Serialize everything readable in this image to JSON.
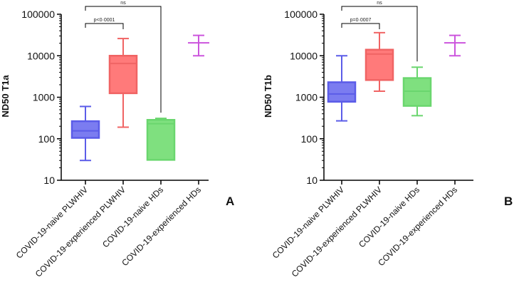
{
  "chart_data": [
    {
      "type": "box",
      "panel": "A",
      "ylabel": "ND50 T1a",
      "yscale": "log",
      "ylim": [
        10,
        100000
      ],
      "yticks": [
        10,
        100,
        1000,
        10000,
        100000
      ],
      "ytick_labels": [
        "10",
        "100",
        "1000",
        "10000",
        "100000"
      ],
      "categories": [
        "COVID-19-naive PLWHIV",
        "COVID-19-experienced PLWHIV",
        "COVID-19-naive HDs",
        "COVID-19-experienced HDs"
      ],
      "colors": [
        "#5b5ce8",
        "#f06464",
        "#6ad66e",
        "#cc55dd"
      ],
      "boxes": [
        {
          "min": 30,
          "q1": 105,
          "median": 155,
          "q3": 265,
          "max": 600
        },
        {
          "min": 190,
          "q1": 1250,
          "median": 6500,
          "q3": 10000,
          "max": 26000
        },
        {
          "min": 31,
          "q1": 31,
          "median": 230,
          "q3": 285,
          "max": 310
        },
        {
          "min": 10000,
          "q1": 20500,
          "median": 20500,
          "q3": 20500,
          "max": 31000
        }
      ],
      "comparisons": [
        {
          "from": 0,
          "to": 1,
          "label": "p<0·0001"
        },
        {
          "from": 0,
          "to": 2,
          "label": "ns"
        }
      ]
    },
    {
      "type": "box",
      "panel": "B",
      "ylabel": "ND50 T1b",
      "yscale": "log",
      "ylim": [
        10,
        100000
      ],
      "yticks": [
        10,
        100,
        1000,
        10000,
        100000
      ],
      "ytick_labels": [
        "10",
        "100",
        "1000",
        "10000",
        "100000"
      ],
      "categories": [
        "COVID-19-naive PLWHIV",
        "COVID-19-experienced PLWHIV",
        "COVID-19-naive HDs",
        "COVID-19-experienced HDs"
      ],
      "colors": [
        "#5b5ce8",
        "#f06464",
        "#6ad66e",
        "#cc55dd"
      ],
      "boxes": [
        {
          "min": 270,
          "q1": 780,
          "median": 1200,
          "q3": 2300,
          "max": 10000
        },
        {
          "min": 1400,
          "q1": 2600,
          "median": 11000,
          "q3": 14000,
          "max": 36000
        },
        {
          "min": 360,
          "q1": 620,
          "median": 1400,
          "q3": 2900,
          "max": 5300
        },
        {
          "min": 10000,
          "q1": 20500,
          "median": 20500,
          "q3": 20500,
          "max": 31000
        }
      ],
      "comparisons": [
        {
          "from": 0,
          "to": 1,
          "label": "p=0·0007"
        },
        {
          "from": 0,
          "to": 2,
          "label": "ns"
        }
      ]
    }
  ]
}
